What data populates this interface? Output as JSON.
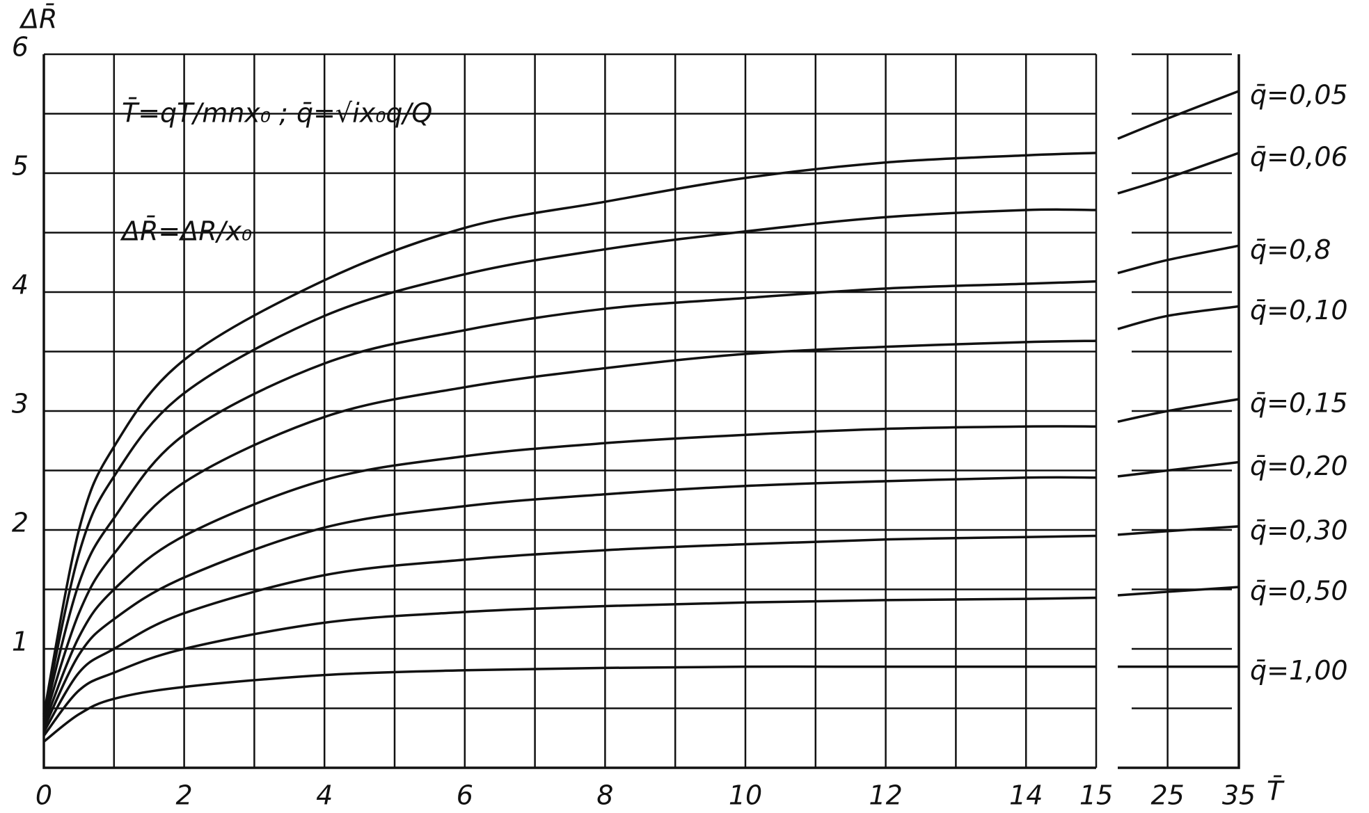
{
  "chart_data": {
    "type": "line",
    "y_label": "ΔR̄",
    "x_label": "T̄",
    "annotations": [
      "T̄=qT/mnx₀ ; q̄=√ix₀q/Q",
      "ΔR̄=ΔR/x₀"
    ],
    "x": [
      0,
      0.5,
      1,
      2,
      4,
      6,
      8,
      10,
      12,
      14,
      15
    ],
    "x2": [
      18,
      25,
      35
    ],
    "xlim": [
      0,
      15
    ],
    "x2lim": [
      18,
      35
    ],
    "xticks": [
      0,
      2,
      4,
      6,
      8,
      10,
      12,
      14,
      15
    ],
    "xminor": [
      1,
      3,
      5,
      7,
      9,
      11,
      13
    ],
    "x2ticks": [
      25,
      35
    ],
    "ylim": [
      0,
      6
    ],
    "yticks": [
      1,
      2,
      3,
      4,
      5,
      6
    ],
    "yminor": [
      0.5,
      1.5,
      2.5,
      3.5,
      4.5,
      5.5
    ],
    "grid": true,
    "color": "#111111",
    "series": [
      {
        "name": "q̄=0,05",
        "values": [
          0.45,
          2.0,
          2.7,
          3.43,
          4.1,
          4.54,
          4.76,
          4.96,
          5.09,
          5.15,
          5.17
        ],
        "values2": [
          5.29,
          5.46,
          5.69
        ]
      },
      {
        "name": "q̄=0,06",
        "values": [
          0.43,
          1.8,
          2.45,
          3.15,
          3.8,
          4.15,
          4.36,
          4.51,
          4.63,
          4.69,
          4.69
        ],
        "values2": [
          4.83,
          4.96,
          5.17
        ]
      },
      {
        "name": "q̄=0,8",
        "values": [
          0.41,
          1.55,
          2.1,
          2.8,
          3.4,
          3.68,
          3.86,
          3.95,
          4.03,
          4.07,
          4.09
        ],
        "values2": [
          4.16,
          4.27,
          4.39
        ]
      },
      {
        "name": "q̄=0,10",
        "values": [
          0.39,
          1.3,
          1.8,
          2.4,
          2.95,
          3.2,
          3.36,
          3.48,
          3.54,
          3.58,
          3.59
        ],
        "values2": [
          3.69,
          3.8,
          3.88
        ]
      },
      {
        "name": "q̄=0,15",
        "values": [
          0.36,
          1.1,
          1.5,
          1.95,
          2.42,
          2.62,
          2.73,
          2.8,
          2.85,
          2.87,
          2.87
        ],
        "values2": [
          2.91,
          3.0,
          3.1
        ]
      },
      {
        "name": "q̄=0,20",
        "values": [
          0.33,
          0.95,
          1.25,
          1.6,
          2.02,
          2.2,
          2.3,
          2.37,
          2.41,
          2.44,
          2.44
        ],
        "values2": [
          2.45,
          2.5,
          2.57
        ]
      },
      {
        "name": "q̄=0,30",
        "values": [
          0.3,
          0.8,
          1.0,
          1.3,
          1.62,
          1.75,
          1.83,
          1.88,
          1.92,
          1.94,
          1.95
        ],
        "values2": [
          1.96,
          1.99,
          2.03
        ]
      },
      {
        "name": "q̄=0,50",
        "values": [
          0.27,
          0.65,
          0.8,
          1.0,
          1.22,
          1.31,
          1.36,
          1.39,
          1.41,
          1.42,
          1.43
        ],
        "values2": [
          1.45,
          1.48,
          1.52
        ]
      },
      {
        "name": "q̄=1,00",
        "values": [
          0.22,
          0.45,
          0.58,
          0.68,
          0.78,
          0.82,
          0.84,
          0.85,
          0.85,
          0.85,
          0.85
        ],
        "values2": [
          0.85,
          0.85,
          0.85
        ]
      }
    ]
  }
}
